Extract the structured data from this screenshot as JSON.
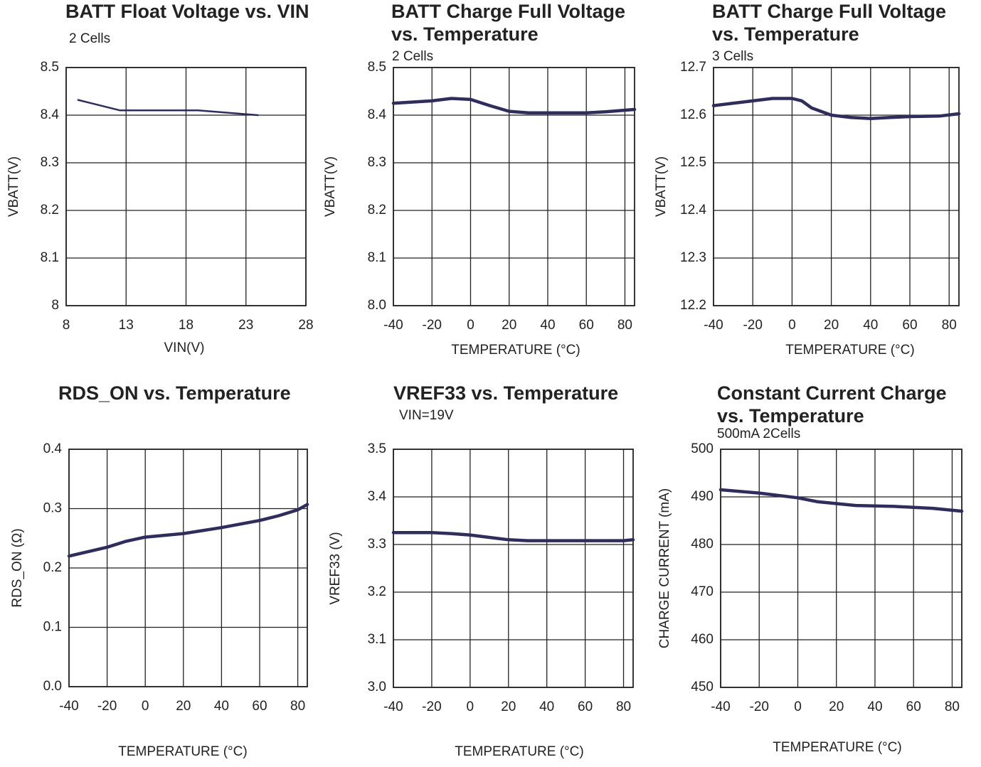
{
  "chart_data": [
    {
      "type": "line",
      "title": [
        "BATT Float Voltage vs. VIN"
      ],
      "subtitle": "2 Cells",
      "x_label": "VIN(V)",
      "y_label": "VBATT(V)",
      "x": [
        9,
        12.5,
        19,
        24
      ],
      "values": [
        8.432,
        8.41,
        8.41,
        8.4
      ],
      "color": "#2e2d5c",
      "xlim": [
        8,
        28
      ],
      "xticks": [
        8,
        13,
        18,
        23,
        28
      ],
      "ylim": [
        8,
        8.5
      ],
      "yticks": [
        8,
        8.1,
        8.2,
        8.3,
        8.4,
        8.5
      ],
      "grid": true
    },
    {
      "type": "line",
      "title": [
        "BATT Charge Full Voltage",
        "vs. Temperature"
      ],
      "subtitle": "2 Cells",
      "x_label": "TEMPERATURE (°C)",
      "y_label": "VBATT(V)",
      "x": [
        -40,
        -20,
        -10,
        0,
        10,
        20,
        30,
        40,
        60,
        70,
        85
      ],
      "values": [
        8.425,
        8.43,
        8.435,
        8.433,
        8.42,
        8.408,
        8.405,
        8.405,
        8.405,
        8.407,
        8.412
      ],
      "color": "#2e2d5c",
      "xlim": [
        -40,
        85
      ],
      "xticks": [
        -40,
        -20,
        0,
        20,
        40,
        60,
        80
      ],
      "ylim": [
        8.0,
        8.5
      ],
      "yticks": [
        {
          "value": 8.0,
          "label": "8.0"
        },
        8.1,
        8.2,
        8.3,
        8.4,
        8.5
      ],
      "grid": true
    },
    {
      "type": "line",
      "title": [
        "BATT Charge Full Voltage",
        "vs. Temperature"
      ],
      "subtitle": "3 Cells",
      "x_label": "TEMPERATURE (°C)",
      "y_label": "VBATT(V)",
      "x": [
        -40,
        -20,
        -10,
        0,
        5,
        10,
        20,
        30,
        40,
        50,
        60,
        75,
        85
      ],
      "values": [
        12.62,
        12.63,
        12.635,
        12.635,
        12.63,
        12.615,
        12.6,
        12.595,
        12.593,
        12.595,
        12.597,
        12.598,
        12.603
      ],
      "color": "#2e2d5c",
      "xlim": [
        -40,
        85
      ],
      "xticks": [
        -40,
        -20,
        0,
        20,
        40,
        60,
        80
      ],
      "ylim": [
        12.2,
        12.7
      ],
      "yticks": [
        12.2,
        12.3,
        12.4,
        12.5,
        12.6,
        12.7
      ],
      "grid": true
    },
    {
      "type": "line",
      "title": [
        "RDS_ON vs. Temperature"
      ],
      "x_label": "TEMPERATURE (°C)",
      "y_label": "RDS_ON (Ω)",
      "x": [
        -40,
        -20,
        -10,
        0,
        10,
        20,
        40,
        60,
        70,
        80,
        85
      ],
      "values": [
        0.22,
        0.235,
        0.245,
        0.252,
        0.255,
        0.258,
        0.268,
        0.28,
        0.288,
        0.298,
        0.307
      ],
      "color": "#2e2d5c",
      "xlim": [
        -40,
        85
      ],
      "xticks": [
        -40,
        -20,
        0,
        20,
        40,
        60,
        80
      ],
      "ylim": [
        0.0,
        0.4
      ],
      "yticks": [
        {
          "value": 0.0,
          "label": "0.0"
        },
        0.1,
        0.2,
        0.3,
        0.4
      ],
      "grid": true
    },
    {
      "type": "line",
      "title": [
        "VREF33 vs. Temperature"
      ],
      "subtitle": "VIN=19V",
      "x_label": "TEMPERATURE (°C)",
      "y_label": "VREF33 (V)",
      "x": [
        -40,
        -20,
        -10,
        0,
        10,
        20,
        30,
        60,
        80,
        85
      ],
      "values": [
        3.325,
        3.325,
        3.323,
        3.32,
        3.315,
        3.31,
        3.308,
        3.308,
        3.308,
        3.31
      ],
      "color": "#2e2d5c",
      "xlim": [
        -40,
        85
      ],
      "xticks": [
        -40,
        -20,
        0,
        20,
        40,
        60,
        80
      ],
      "ylim": [
        3.0,
        3.5
      ],
      "yticks": [
        {
          "value": 3.0,
          "label": "3.0"
        },
        3.1,
        3.2,
        3.3,
        3.4,
        3.5
      ],
      "grid": true
    },
    {
      "type": "line",
      "title": [
        "Constant Current Charge",
        "vs. Temperature"
      ],
      "subtitle": "500mA 2Cells",
      "x_label": "TEMPERATURE (°C)",
      "y_label": "CHARGE CURRENT (mA)",
      "x": [
        -40,
        -20,
        0,
        10,
        30,
        50,
        60,
        70,
        85
      ],
      "values": [
        491.5,
        490.8,
        489.8,
        489,
        488.2,
        488,
        487.8,
        487.6,
        487
      ],
      "color": "#2e2d5c",
      "xlim": [
        -40,
        85
      ],
      "xticks": [
        -40,
        -20,
        0,
        20,
        40,
        60,
        80
      ],
      "ylim": [
        450,
        500
      ],
      "yticks": [
        450,
        460,
        470,
        480,
        490,
        500
      ],
      "grid": true
    }
  ]
}
